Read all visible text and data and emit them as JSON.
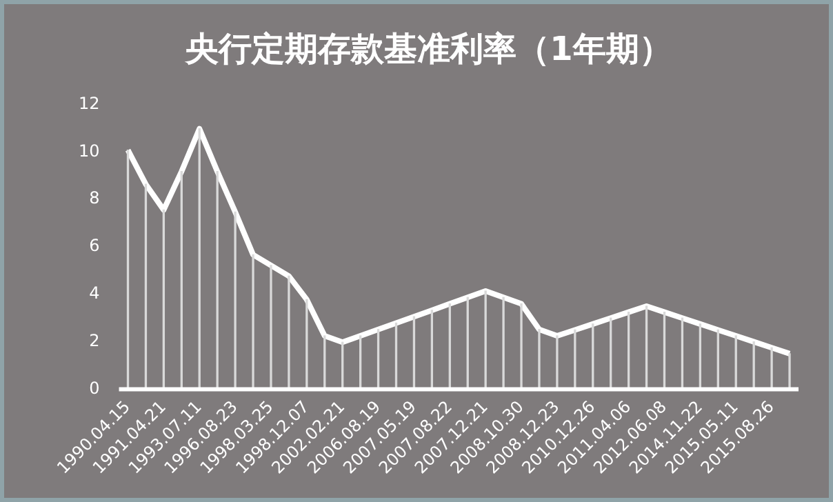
{
  "chart_data": {
    "type": "line",
    "title": "央行定期存款基准利率（1年期）",
    "categories": [
      "1990.04.15",
      null,
      "1991.04.21",
      null,
      "1993.07.11",
      null,
      "1996.08.23",
      null,
      "1998.03.25",
      null,
      "1998.12.07",
      null,
      "2002.02.21",
      null,
      "2006.08.19",
      null,
      "2007.05.19",
      null,
      "2007.08.22",
      null,
      "2007.12.21",
      null,
      "2008.10.30",
      null,
      "2008.12.23",
      null,
      "2010.12.26",
      null,
      "2011.04.06",
      null,
      "2012.06.08",
      null,
      "2014.11.22",
      null,
      "2015.05.11",
      null,
      "2015.08.26",
      null
    ],
    "series": [
      {
        "color": "#ffffff",
        "values": [
          10.08,
          8.64,
          7.56,
          9.18,
          10.98,
          9.18,
          7.47,
          5.67,
          5.22,
          4.77,
          3.78,
          2.25,
          1.98,
          2.25,
          2.52,
          2.79,
          3.06,
          3.33,
          3.6,
          3.87,
          4.14,
          3.87,
          3.6,
          2.52,
          2.25,
          2.5,
          2.75,
          3.0,
          3.25,
          3.5,
          3.25,
          3.0,
          2.75,
          2.5,
          2.25,
          2.0,
          1.75,
          1.5
        ]
      },
      {
        "type": "bar",
        "color": "#d9d9d9",
        "values": [
          10.08,
          8.64,
          7.56,
          9.18,
          10.98,
          9.18,
          7.47,
          5.67,
          5.22,
          4.77,
          3.78,
          2.25,
          1.98,
          2.25,
          2.52,
          2.79,
          3.06,
          3.33,
          3.6,
          3.87,
          4.14,
          3.87,
          3.6,
          2.52,
          2.25,
          2.5,
          2.75,
          3.0,
          3.25,
          3.5,
          3.25,
          3.0,
          2.75,
          2.5,
          2.25,
          2.0,
          1.75,
          1.5
        ]
      }
    ],
    "ylim": [
      0,
      12
    ],
    "yticks": [
      0,
      2,
      4,
      6,
      8,
      10,
      12
    ],
    "grid": false,
    "legend": false,
    "marker": "none",
    "line_style": "solid"
  }
}
